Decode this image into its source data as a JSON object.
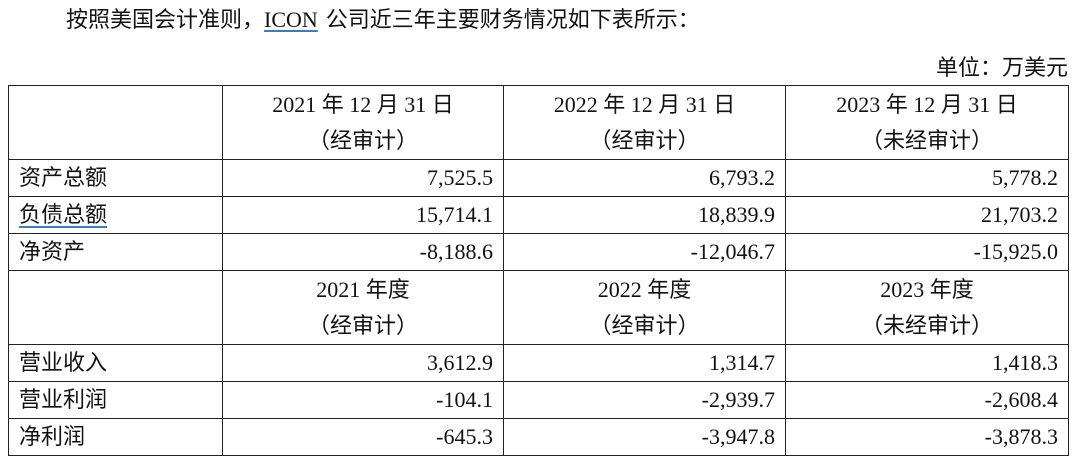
{
  "intro": {
    "before": "按照美国会计准则，",
    "link": "ICON",
    "after": "公司近三年主要财务情况如下表所示："
  },
  "unit": "单位：万美元",
  "table": {
    "balance_header": [
      [
        "2021 年 12 月 31 日",
        "（经审计）"
      ],
      [
        "2022 年 12 月 31 日",
        "（经审计）"
      ],
      [
        "2023 年 12 月 31 日",
        "（未经审计）"
      ]
    ],
    "balance_rows": [
      [
        "资产总额",
        "7,525.5",
        "6,793.2",
        "5,778.2"
      ],
      [
        "负债总额",
        "15,714.1",
        "18,839.9",
        "21,703.2"
      ],
      [
        "净资产",
        "-8,188.6",
        "-12,046.7",
        "-15,925.0"
      ]
    ],
    "income_header": [
      [
        "2021 年度",
        "（经审计）"
      ],
      [
        "2022 年度",
        "（经审计）"
      ],
      [
        "2023 年度",
        "（未经审计）"
      ]
    ],
    "income_rows": [
      [
        "营业收入",
        "3,612.9",
        "1,314.7",
        "1,418.3"
      ],
      [
        "营业利润",
        "-104.1",
        "-2,939.7",
        "-2,608.4"
      ],
      [
        "净利润",
        "-645.3",
        "-3,947.8",
        "-3,878.3"
      ]
    ]
  }
}
